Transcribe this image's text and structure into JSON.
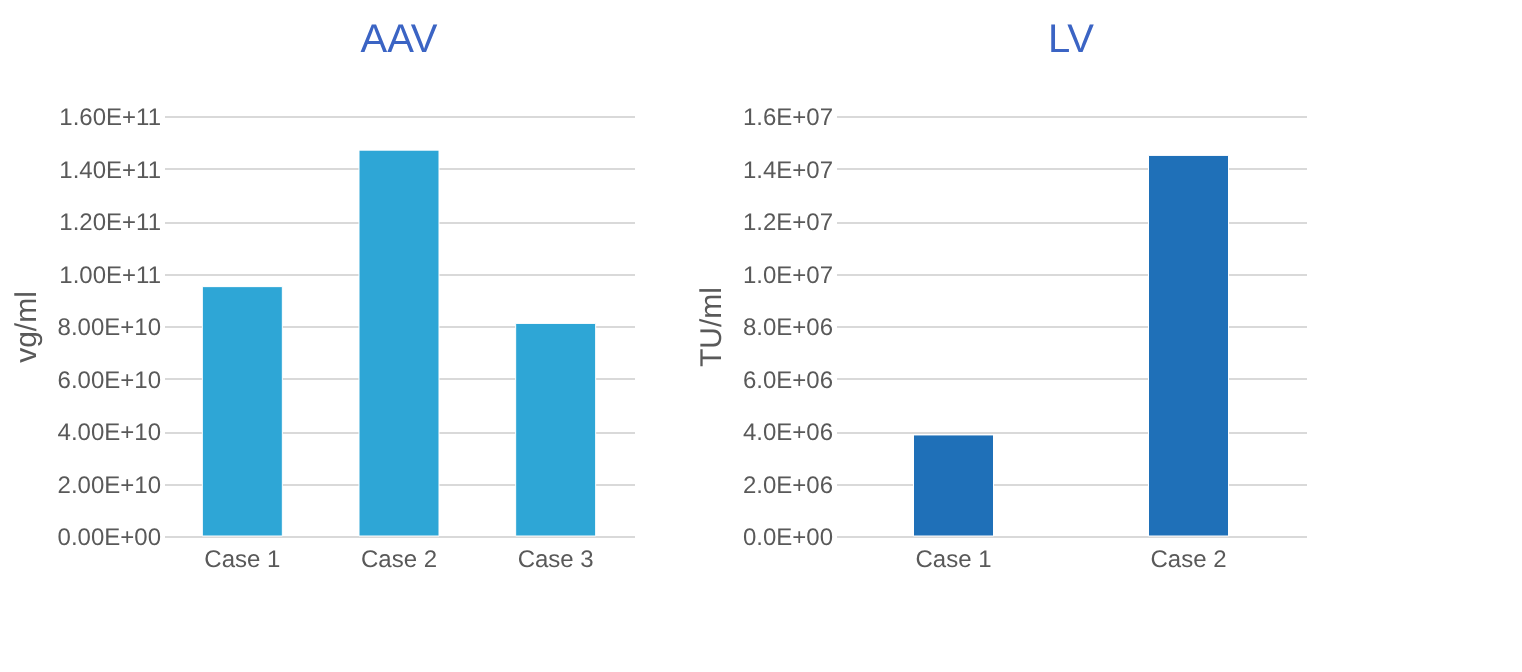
{
  "chart_data": [
    {
      "type": "bar",
      "title": "AAV",
      "ylabel": "vg/ml",
      "categories": [
        "Case 1",
        "Case 2",
        "Case 3"
      ],
      "values": [
        95000000000.0,
        147000000000.0,
        81000000000.0
      ],
      "color": "#2ea6d6",
      "ylim": [
        0,
        160000000000.0
      ],
      "yticks": [
        {
          "value": 0,
          "label": "0.00E+00"
        },
        {
          "value": 20000000000.0,
          "label": "2.00E+10"
        },
        {
          "value": 40000000000.0,
          "label": "4.00E+10"
        },
        {
          "value": 60000000000.0,
          "label": "6.00E+10"
        },
        {
          "value": 80000000000.0,
          "label": "8.00E+10"
        },
        {
          "value": 100000000000.0,
          "label": "1.00E+11"
        },
        {
          "value": 120000000000.0,
          "label": "1.20E+11"
        },
        {
          "value": 140000000000.0,
          "label": "1.40E+11"
        },
        {
          "value": 160000000000.0,
          "label": "1.60E+11"
        }
      ],
      "grid": "y"
    },
    {
      "type": "bar",
      "title": "LV",
      "ylabel": "TU/ml",
      "categories": [
        "Case 1",
        "Case 2"
      ],
      "values": [
        3850000.0,
        14500000.0
      ],
      "color": "#1f70b8",
      "ylim": [
        0,
        16000000.0
      ],
      "yticks": [
        {
          "value": 0,
          "label": "0.0E+00"
        },
        {
          "value": 2000000.0,
          "label": "2.0E+06"
        },
        {
          "value": 4000000.0,
          "label": "4.0E+06"
        },
        {
          "value": 6000000.0,
          "label": "6.0E+06"
        },
        {
          "value": 8000000.0,
          "label": "8.0E+06"
        },
        {
          "value": 10000000.0,
          "label": "1.0E+07"
        },
        {
          "value": 12000000.0,
          "label": "1.2E+07"
        },
        {
          "value": 14000000.0,
          "label": "1.4E+07"
        },
        {
          "value": 16000000.0,
          "label": "1.6E+07"
        }
      ],
      "grid": "y"
    }
  ]
}
